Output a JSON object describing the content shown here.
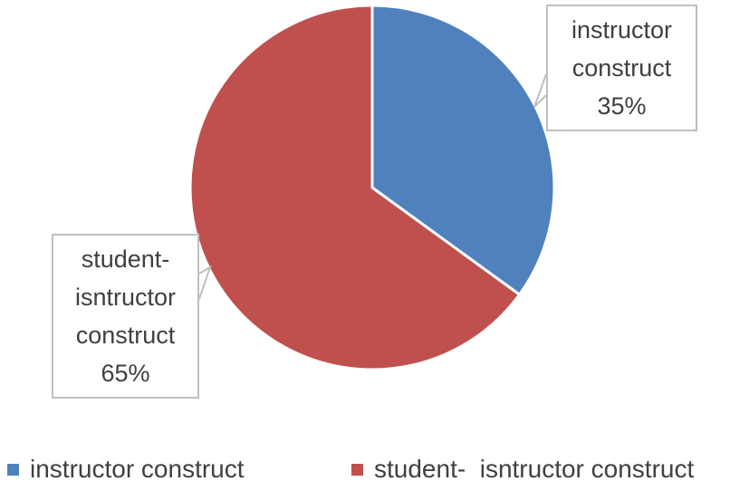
{
  "chart_data": {
    "type": "pie",
    "categories": [
      "instructor construct",
      "student-  isntructor construct"
    ],
    "values": [
      35,
      65
    ],
    "value_labels": [
      "35%",
      "65%"
    ],
    "colors": [
      "#4f81bd",
      "#c0504d"
    ]
  }
}
